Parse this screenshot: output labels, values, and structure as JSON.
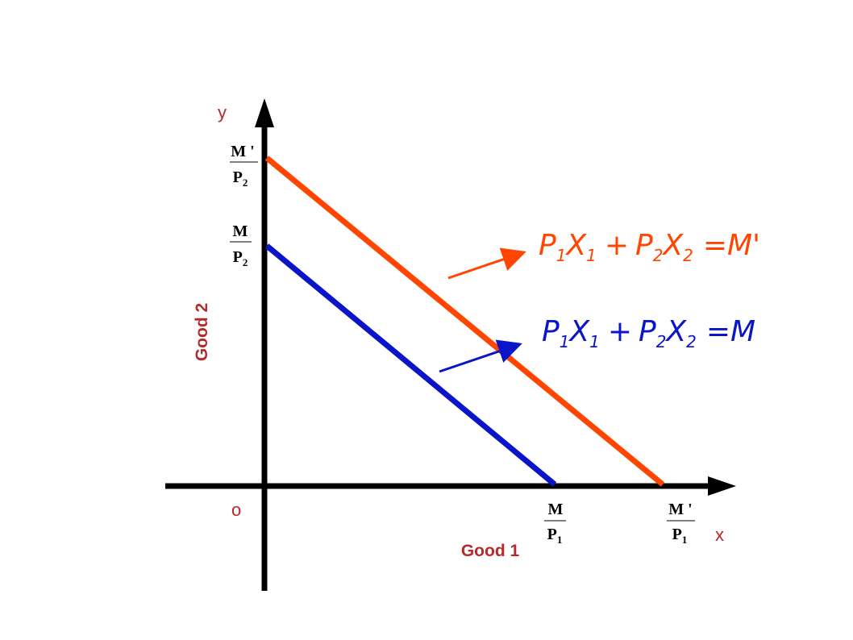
{
  "axes": {
    "y_letter": "y",
    "x_letter": "x",
    "origin": "o",
    "y_title": "Good 2",
    "x_title": "Good 1"
  },
  "intercepts": {
    "y_new": {
      "num": "M '",
      "den_base": "P",
      "den_sub": "2"
    },
    "y_old": {
      "num": "M",
      "den_base": "P",
      "den_sub": "2"
    },
    "x_old": {
      "num": "M",
      "den_base": "P",
      "den_sub": "1"
    },
    "x_new": {
      "num": "M '",
      "den_base": "P",
      "den_sub": "1"
    }
  },
  "equations": {
    "new": {
      "p1": "P",
      "s1": "1",
      "x1": "X",
      "t1": "1",
      "plus": "+",
      "p2": "P",
      "s2": "2",
      "x2": "X",
      "t2": "2",
      "rhs": "=M'"
    },
    "old": {
      "p1": "P",
      "s1": "1",
      "x1": "X",
      "t1": "1",
      "plus": "+",
      "p2": "P",
      "s2": "2",
      "x2": "X",
      "t2": "2",
      "rhs": "=M"
    }
  },
  "colors": {
    "axis": "#000000",
    "new_line": "#ff4500",
    "old_line": "#0a14c8",
    "label": "#b52a2a"
  }
}
